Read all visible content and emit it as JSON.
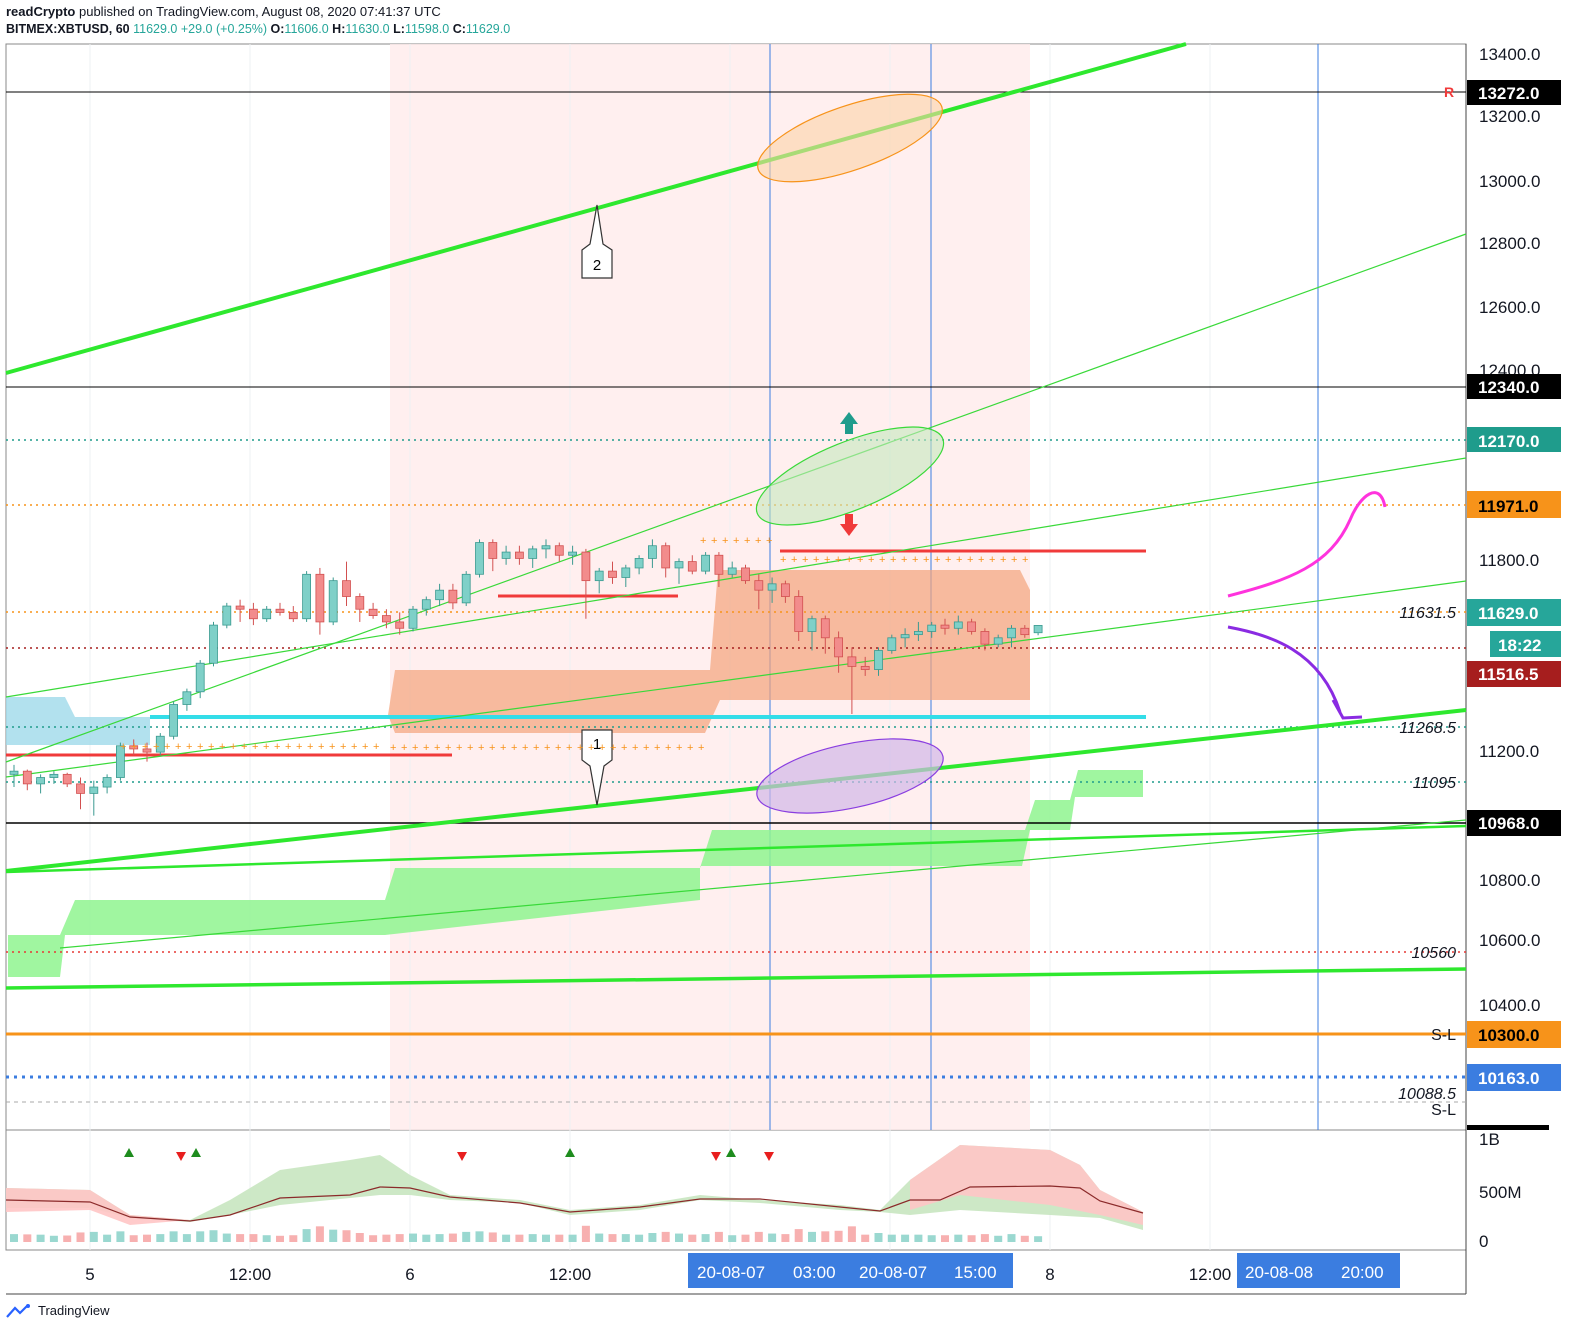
{
  "header": {
    "publisher": "readCrypto",
    "published_text": "published on TradingView.com, August 08, 2020 07:41:37 UTC",
    "symbol": "BITMEX:XBTUSD, 60",
    "last": "11629.0",
    "change": "+29.0 (+0.25%)",
    "o_label": "O:",
    "o": "11606.0",
    "h_label": "H:",
    "h": "11630.0",
    "l_label": "L:",
    "l": "11598.0",
    "c_label": "C:",
    "c": "11629.0"
  },
  "footer": {
    "brand": "TradingView"
  },
  "chart_data": {
    "type": "candlestick",
    "symbol": "BITMEX:XBTUSD",
    "interval": "60",
    "ylim": [
      10040,
      13460
    ],
    "price_axis_ticks": [
      "13400.0",
      "13200.0",
      "13000.0",
      "12800.0",
      "12600.0",
      "12400.0",
      "11800.0",
      "11200.0",
      "10800.0",
      "10600.0",
      "10400.0",
      "10300.0"
    ],
    "time_axis_ticks": [
      "5",
      "12:00",
      "6",
      "12:00",
      "8",
      "12:00"
    ],
    "time_axis_highlights": [
      "20-08-07",
      "03:00",
      "20-08-07",
      "15:00",
      "20-08-08",
      "20:00"
    ],
    "price_labels": [
      {
        "value": "13272.0",
        "color": "#000000"
      },
      {
        "value": "12340.0",
        "color": "#000000"
      },
      {
        "value": "12170.0",
        "color": "#1f9c8c"
      },
      {
        "value": "11971.0",
        "color": "#f7931a"
      },
      {
        "value": "11629.0",
        "color": "#26a69a"
      },
      {
        "value": "18:22",
        "color": "#26a69a"
      },
      {
        "value": "11516.5",
        "color": "#a61e1e"
      },
      {
        "value": "10968.0",
        "color": "#000000"
      },
      {
        "value": "10300.0",
        "color": "#f7931a"
      },
      {
        "value": "10163.0",
        "color": "#3b7de0"
      }
    ],
    "level_lines": [
      {
        "price": 13272.0,
        "style": "solid",
        "color": "#000000"
      },
      {
        "price": 12340.0,
        "style": "solid",
        "color": "#000000"
      },
      {
        "price": 12170.0,
        "style": "dotted",
        "color": "#1f9c8c"
      },
      {
        "price": 11971.0,
        "style": "dotted",
        "color": "#f7931a"
      },
      {
        "price": 11631.5,
        "style": "dotted",
        "color": "#f7931a",
        "label": "11631.5"
      },
      {
        "price": 11516.5,
        "style": "dotted",
        "color": "#a61e1e"
      },
      {
        "price": 11268.5,
        "style": "dotted",
        "color": "#1f9c8c",
        "label": "11268.5"
      },
      {
        "price": 11095,
        "style": "dotted",
        "color": "#1f9c8c",
        "label": "11095"
      },
      {
        "price": 10968.0,
        "style": "solid",
        "color": "#000000"
      },
      {
        "price": 10560,
        "style": "dotted",
        "color": "#e53935",
        "label": "10560"
      },
      {
        "price": 10300.0,
        "style": "solid",
        "color": "#f7931a",
        "label": "S-L"
      },
      {
        "price": 10163.0,
        "style": "dotted",
        "color": "#3b7de0"
      },
      {
        "price": 10088.5,
        "style": "dashed",
        "color": "#999999",
        "label": "10088.5",
        "sublabel": "S-L"
      }
    ],
    "annotations": [
      "1",
      "2",
      "R"
    ],
    "volume_axis_ticks": [
      "1B",
      "500M",
      "0"
    ],
    "candles": [
      [
        11160,
        11190,
        11120,
        11170
      ],
      [
        11170,
        11175,
        11110,
        11130
      ],
      [
        11130,
        11160,
        11100,
        11150
      ],
      [
        11150,
        11170,
        11130,
        11160
      ],
      [
        11160,
        11165,
        11120,
        11130
      ],
      [
        11130,
        11150,
        11050,
        11100
      ],
      [
        11100,
        11140,
        11030,
        11120
      ],
      [
        11120,
        11160,
        11100,
        11150
      ],
      [
        11150,
        11260,
        11140,
        11250
      ],
      [
        11250,
        11270,
        11220,
        11240
      ],
      [
        11240,
        11260,
        11200,
        11230
      ],
      [
        11230,
        11290,
        11220,
        11280
      ],
      [
        11280,
        11390,
        11270,
        11380
      ],
      [
        11380,
        11430,
        11360,
        11420
      ],
      [
        11420,
        11520,
        11400,
        11510
      ],
      [
        11510,
        11640,
        11500,
        11630
      ],
      [
        11630,
        11700,
        11620,
        11690
      ],
      [
        11690,
        11710,
        11640,
        11680
      ],
      [
        11680,
        11700,
        11630,
        11650
      ],
      [
        11650,
        11690,
        11640,
        11680
      ],
      [
        11680,
        11700,
        11660,
        11670
      ],
      [
        11670,
        11690,
        11640,
        11650
      ],
      [
        11650,
        11800,
        11640,
        11790
      ],
      [
        11790,
        11810,
        11600,
        11640
      ],
      [
        11640,
        11780,
        11630,
        11770
      ],
      [
        11770,
        11830,
        11690,
        11720
      ],
      [
        11720,
        11730,
        11640,
        11680
      ],
      [
        11680,
        11700,
        11650,
        11660
      ],
      [
        11660,
        11680,
        11620,
        11640
      ],
      [
        11640,
        11670,
        11600,
        11620
      ],
      [
        11620,
        11690,
        11610,
        11680
      ],
      [
        11680,
        11720,
        11660,
        11710
      ],
      [
        11710,
        11760,
        11690,
        11740
      ],
      [
        11740,
        11760,
        11680,
        11700
      ],
      [
        11700,
        11800,
        11690,
        11790
      ],
      [
        11790,
        11900,
        11780,
        11890
      ],
      [
        11890,
        11900,
        11800,
        11840
      ],
      [
        11840,
        11880,
        11820,
        11860
      ],
      [
        11860,
        11880,
        11820,
        11840
      ],
      [
        11840,
        11880,
        11810,
        11870
      ],
      [
        11870,
        11900,
        11840,
        11880
      ],
      [
        11880,
        11890,
        11830,
        11850
      ],
      [
        11850,
        11880,
        11820,
        11860
      ],
      [
        11860,
        11870,
        11650,
        11770
      ],
      [
        11770,
        11810,
        11730,
        11800
      ],
      [
        11800,
        11830,
        11760,
        11780
      ],
      [
        11780,
        11820,
        11750,
        11810
      ],
      [
        11810,
        11850,
        11790,
        11840
      ],
      [
        11840,
        11900,
        11810,
        11880
      ],
      [
        11880,
        11890,
        11780,
        11810
      ],
      [
        11810,
        11840,
        11760,
        11830
      ],
      [
        11830,
        11850,
        11790,
        11800
      ],
      [
        11800,
        11860,
        11790,
        11850
      ],
      [
        11850,
        11860,
        11750,
        11790
      ],
      [
        11790,
        11830,
        11780,
        11810
      ],
      [
        11810,
        11820,
        11760,
        11770
      ],
      [
        11770,
        11790,
        11680,
        11740
      ],
      [
        11740,
        11780,
        11700,
        11760
      ],
      [
        11760,
        11770,
        11700,
        11720
      ],
      [
        11720,
        11740,
        11580,
        11610
      ],
      [
        11610,
        11660,
        11550,
        11650
      ],
      [
        11650,
        11660,
        11540,
        11590
      ],
      [
        11590,
        11610,
        11480,
        11530
      ],
      [
        11530,
        11560,
        11350,
        11500
      ],
      [
        11500,
        11530,
        11470,
        11490
      ],
      [
        11490,
        11560,
        11470,
        11550
      ],
      [
        11550,
        11600,
        11540,
        11590
      ],
      [
        11590,
        11620,
        11560,
        11600
      ],
      [
        11600,
        11640,
        11580,
        11610
      ],
      [
        11610,
        11640,
        11590,
        11630
      ],
      [
        11630,
        11650,
        11600,
        11620
      ],
      [
        11620,
        11660,
        11600,
        11640
      ],
      [
        11640,
        11650,
        11600,
        11610
      ],
      [
        11610,
        11620,
        11550,
        11570
      ],
      [
        11570,
        11600,
        11560,
        11590
      ],
      [
        11590,
        11630,
        11560,
        11620
      ],
      [
        11620,
        11630,
        11590,
        11600
      ],
      [
        11606,
        11630,
        11598,
        11629
      ]
    ]
  }
}
